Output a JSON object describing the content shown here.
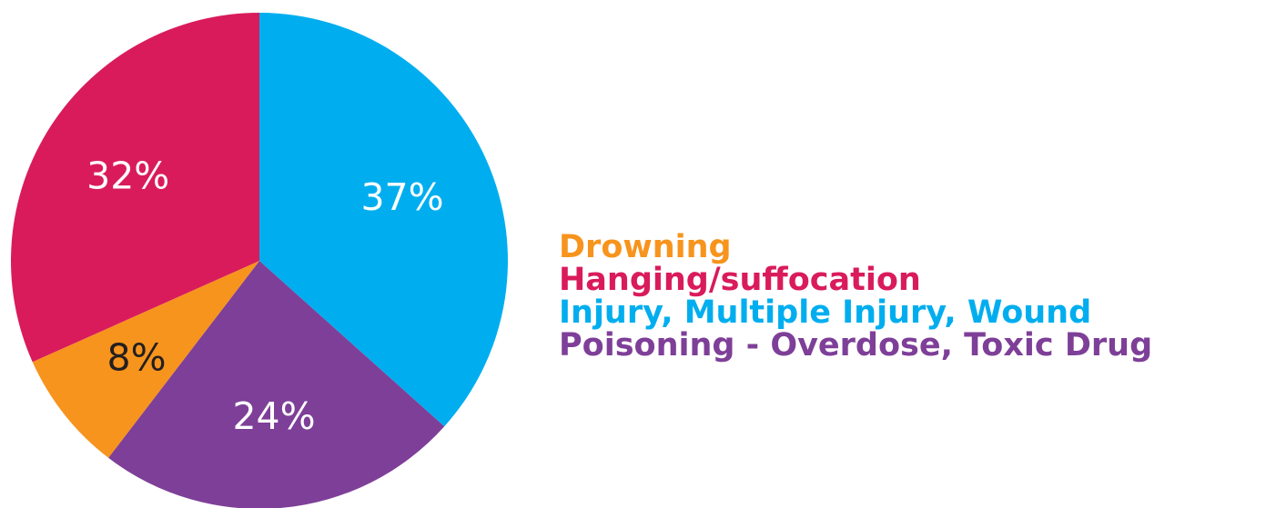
{
  "chart_data": {
    "type": "pie",
    "title": "",
    "legend_position": "right",
    "series": [
      {
        "slices": [
          {
            "label": "Injury, Multiple Injury, Wound",
            "value": 37,
            "display": "37%",
            "color": "#00AEEF",
            "label_color": "#ffffff"
          },
          {
            "label": "Poisoning - Overdose, Toxic Drug",
            "value": 24,
            "display": "24%",
            "color": "#7E3F98",
            "label_color": "#ffffff"
          },
          {
            "label": "Drowning",
            "value": 8,
            "display": "8%",
            "color": "#F7941D",
            "label_color": "#231F20"
          },
          {
            "label": "Hanging/suffocation",
            "value": 32,
            "display": "32%",
            "color": "#D91B5C",
            "label_color": "#ffffff"
          }
        ]
      }
    ],
    "legend": [
      {
        "label": "Drowning",
        "color": "#F7941D"
      },
      {
        "label": "Hanging/suffocation",
        "color": "#D91B5C"
      },
      {
        "label": "Injury, Multiple Injury, Wound",
        "color": "#00AEEF"
      },
      {
        "label": "Poisoning - Overdose, Toxic Drug",
        "color": "#7E3F98"
      }
    ]
  }
}
